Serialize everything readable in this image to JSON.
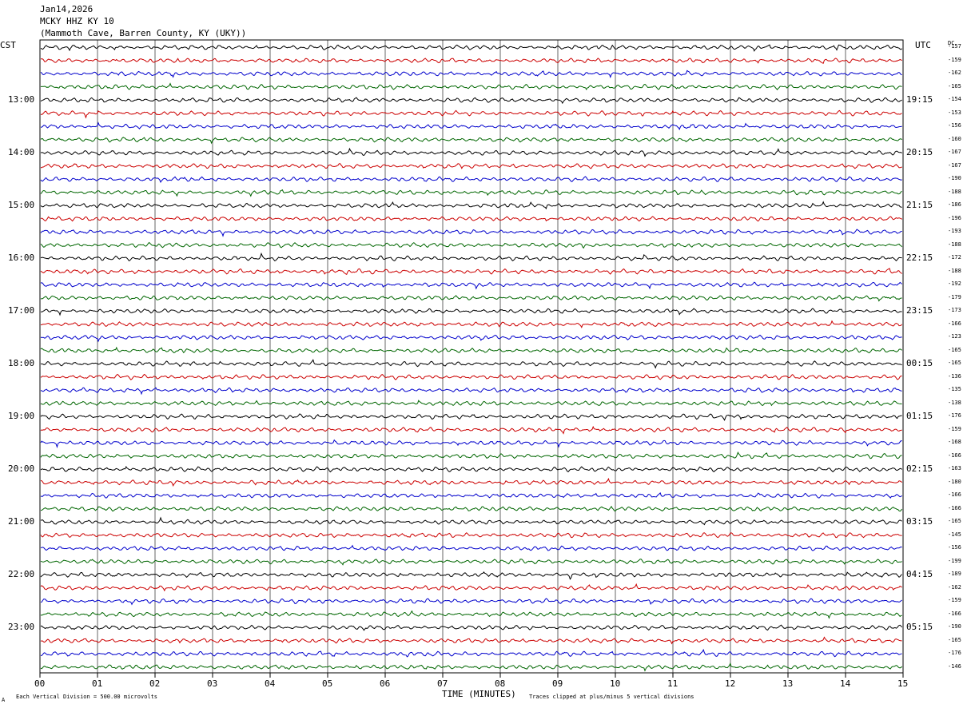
{
  "header": {
    "date": "Jan14,2026",
    "station": "MCKY HHZ KY 10",
    "location": "(Mammoth Cave, Barren County, KY (UKY))"
  },
  "left_zone": "CST",
  "right_zone": "UTC",
  "dc_label": "DC",
  "footer": {
    "scale": "Each Vertical Division =  500.00 microvolts",
    "clip_note": "Traces clipped at plus/minus 5 vertical divisions",
    "corner_mark": "A"
  },
  "colors": {
    "trace_cycle": [
      "#000000",
      "#cc0000",
      "#0000cc",
      "#006600"
    ],
    "grid": "#000000",
    "background": "#ffffff"
  },
  "chart_data": {
    "type": "line",
    "xlabel": "TIME (MINUTES)",
    "xlim": [
      0,
      15
    ],
    "x_ticks": [
      "00",
      "01",
      "02",
      "03",
      "04",
      "05",
      "06",
      "07",
      "08",
      "09",
      "10",
      "11",
      "12",
      "13",
      "14",
      "15"
    ],
    "rows": 48,
    "traces_per_hour": 4,
    "left_hour_labels": [
      "13:00",
      "14:00",
      "15:00",
      "16:00",
      "17:00",
      "18:00",
      "19:00",
      "20:00",
      "21:00",
      "22:00",
      "23:00"
    ],
    "right_hour_labels": [
      "19:15",
      "20:15",
      "21:15",
      "22:15",
      "23:15",
      "00:15",
      "01:15",
      "02:15",
      "03:15",
      "04:15",
      "05:15"
    ],
    "dc_offsets": [
      "-157",
      "-159",
      "-162",
      "-165",
      "-154",
      "-153",
      "-156",
      "-160",
      "-167",
      "-167",
      "-190",
      "-188",
      "-186",
      "-196",
      "-193",
      "-188",
      "-172",
      "-188",
      "-192",
      "-179",
      "-173",
      "-166",
      "-123",
      "-165",
      "-165",
      "-136",
      "-135",
      "-138",
      "-176",
      "-159",
      "-168",
      "-166",
      "-163",
      "-180",
      "-166",
      "-166",
      "-165",
      "-145",
      "-156",
      "-199",
      "-189",
      "-162",
      "-159",
      "-166",
      "-190",
      "-165",
      "-176",
      "-146"
    ]
  }
}
